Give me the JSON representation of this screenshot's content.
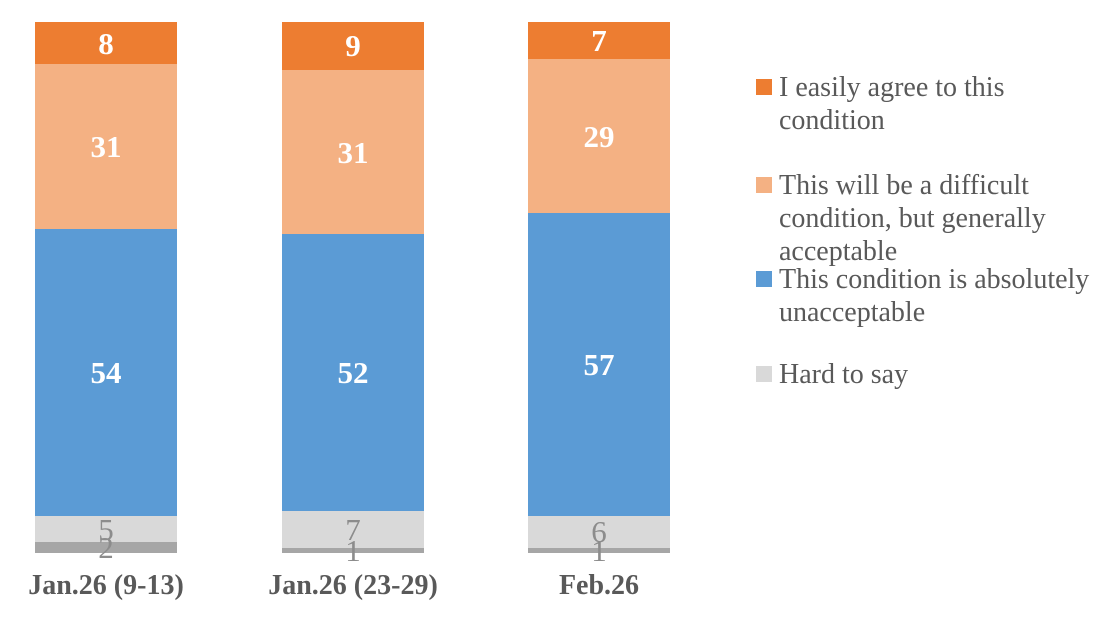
{
  "chart_data": {
    "type": "bar",
    "subtype": "stacked-100-vertical-columns",
    "title": "",
    "xlabel": "",
    "ylabel": "",
    "axes_visible": false,
    "grid": false,
    "total_per_bar": 100,
    "categories": [
      "Jan.26 (9-13)",
      "Jan.26 (23-29)",
      "Feb.26"
    ],
    "series": [
      {
        "name": "I easily agree to this condition",
        "color": "#ED7D31",
        "label_color": "#FFFFFF",
        "label_inside": true,
        "values": [
          8,
          9,
          7
        ]
      },
      {
        "name": "This will be a difficult condition, but generally acceptable",
        "color": "#F4B183",
        "label_color": "#FFFFFF",
        "label_inside": true,
        "values": [
          31,
          31,
          29
        ]
      },
      {
        "name": "This condition is absolutely unacceptable",
        "color": "#5B9BD5",
        "label_color": "#FFFFFF",
        "label_inside": true,
        "values": [
          54,
          52,
          57
        ]
      },
      {
        "name": "Hard to say",
        "color": "#D9D9D9",
        "label_color": "#8C8C8C",
        "label_inside": false,
        "values": [
          5,
          7,
          6
        ]
      },
      {
        "name": "",
        "color": "#A6A6A6",
        "label_color": "#8C8C8C",
        "label_inside": false,
        "values": [
          2,
          1,
          1
        ]
      }
    ],
    "legend_position": "right"
  },
  "legend": {
    "items": [
      {
        "text": "I easily agree to this\ncondition",
        "color": "#ED7D31"
      },
      {
        "text": "This will be a difficult\ncondition, but generally\nacceptable",
        "color": "#F4B183"
      },
      {
        "text": "This condition is absolutely\nunacceptable",
        "color": "#5B9BD5"
      },
      {
        "text": "Hard to say",
        "color": "#D9D9D9"
      }
    ]
  }
}
